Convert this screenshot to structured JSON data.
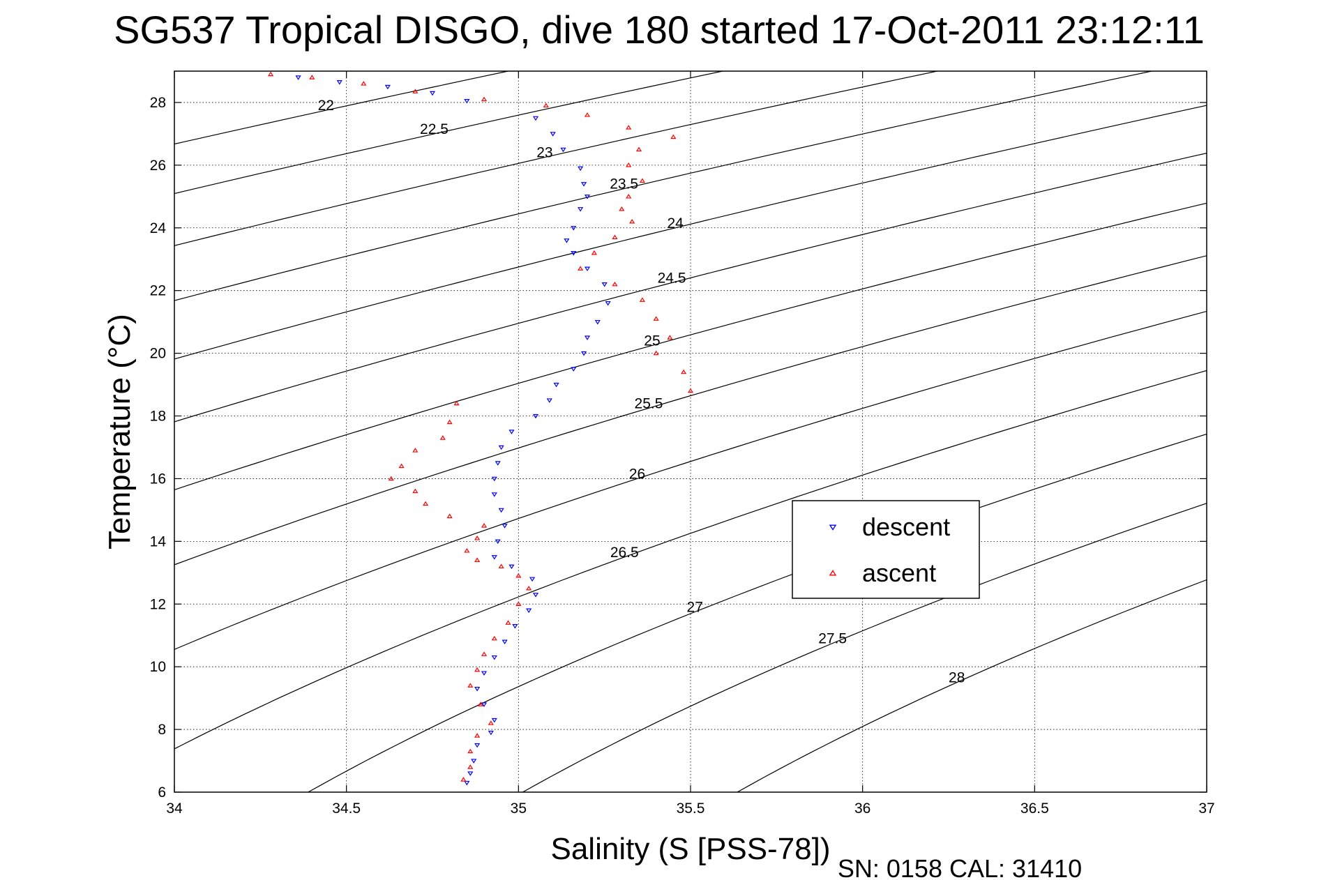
{
  "chart_data": {
    "type": "scatter",
    "title": "SG537 Tropical DISGO, dive 180 started 17-Oct-2011 23:12:11",
    "xlabel": "Salinity (S [PSS-78])",
    "ylabel": "Temperature (°C)",
    "xlim": [
      34,
      37
    ],
    "ylim": [
      6,
      29
    ],
    "x_ticks": [
      34,
      34.5,
      35,
      35.5,
      36,
      36.5,
      37
    ],
    "x_tick_labels": [
      "34",
      "34.5",
      "35",
      "35.5",
      "36",
      "36.5",
      "37"
    ],
    "y_ticks": [
      6,
      8,
      10,
      12,
      14,
      16,
      18,
      20,
      22,
      24,
      26,
      28
    ],
    "y_tick_labels": [
      "6",
      "8",
      "10",
      "12",
      "14",
      "16",
      "18",
      "20",
      "22",
      "24",
      "26",
      "28"
    ],
    "grid": true,
    "legend_position": "right-center",
    "density_contour_labels": [
      "22",
      "22.5",
      "23",
      "23.5",
      "24",
      "24.5",
      "25",
      "25.5",
      "26",
      "26.5",
      "27",
      "27.5",
      "28"
    ],
    "series": [
      {
        "name": "descent",
        "marker": "triangle-down",
        "color": "#0000ff",
        "points": [
          [
            34.36,
            28.8
          ],
          [
            34.48,
            28.65
          ],
          [
            34.62,
            28.5
          ],
          [
            34.75,
            28.3
          ],
          [
            34.85,
            28.05
          ],
          [
            35.05,
            27.5
          ],
          [
            35.1,
            27.0
          ],
          [
            35.13,
            26.5
          ],
          [
            35.18,
            25.9
          ],
          [
            35.19,
            25.4
          ],
          [
            35.2,
            25.0
          ],
          [
            35.18,
            24.6
          ],
          [
            35.16,
            24.0
          ],
          [
            35.14,
            23.6
          ],
          [
            35.16,
            23.2
          ],
          [
            35.2,
            22.7
          ],
          [
            35.25,
            22.2
          ],
          [
            35.26,
            21.6
          ],
          [
            35.23,
            21.0
          ],
          [
            35.2,
            20.5
          ],
          [
            35.19,
            20.0
          ],
          [
            35.16,
            19.5
          ],
          [
            35.11,
            19.0
          ],
          [
            35.09,
            18.5
          ],
          [
            35.05,
            18.0
          ],
          [
            34.98,
            17.5
          ],
          [
            34.95,
            17.0
          ],
          [
            34.94,
            16.5
          ],
          [
            34.93,
            16.0
          ],
          [
            34.93,
            15.5
          ],
          [
            34.95,
            15.0
          ],
          [
            34.96,
            14.5
          ],
          [
            34.94,
            14.0
          ],
          [
            34.93,
            13.5
          ],
          [
            34.98,
            13.2
          ],
          [
            35.04,
            12.8
          ],
          [
            35.05,
            12.3
          ],
          [
            35.03,
            11.8
          ],
          [
            34.99,
            11.3
          ],
          [
            34.96,
            10.8
          ],
          [
            34.93,
            10.3
          ],
          [
            34.9,
            9.8
          ],
          [
            34.88,
            9.3
          ],
          [
            34.9,
            8.8
          ],
          [
            34.93,
            8.3
          ],
          [
            34.92,
            7.9
          ],
          [
            34.88,
            7.5
          ],
          [
            34.87,
            7.0
          ],
          [
            34.86,
            6.6
          ],
          [
            34.85,
            6.3
          ]
        ]
      },
      {
        "name": "ascent",
        "marker": "triangle-up",
        "color": "#ff0000",
        "points": [
          [
            34.28,
            28.9
          ],
          [
            34.4,
            28.8
          ],
          [
            34.55,
            28.6
          ],
          [
            34.7,
            28.35
          ],
          [
            34.9,
            28.1
          ],
          [
            35.08,
            27.9
          ],
          [
            35.2,
            27.6
          ],
          [
            35.32,
            27.2
          ],
          [
            35.45,
            26.9
          ],
          [
            35.35,
            26.5
          ],
          [
            35.32,
            26.0
          ],
          [
            35.36,
            25.5
          ],
          [
            35.32,
            25.0
          ],
          [
            35.3,
            24.6
          ],
          [
            35.33,
            24.2
          ],
          [
            35.28,
            23.7
          ],
          [
            35.22,
            23.2
          ],
          [
            35.18,
            22.7
          ],
          [
            35.28,
            22.2
          ],
          [
            35.36,
            21.7
          ],
          [
            35.4,
            21.1
          ],
          [
            35.44,
            20.5
          ],
          [
            35.4,
            20.0
          ],
          [
            35.48,
            19.4
          ],
          [
            35.5,
            18.8
          ],
          [
            34.82,
            18.4
          ],
          [
            34.8,
            17.8
          ],
          [
            34.78,
            17.3
          ],
          [
            34.7,
            16.9
          ],
          [
            34.66,
            16.4
          ],
          [
            34.63,
            16.0
          ],
          [
            34.7,
            15.6
          ],
          [
            34.73,
            15.2
          ],
          [
            34.8,
            14.8
          ],
          [
            34.9,
            14.5
          ],
          [
            34.88,
            14.1
          ],
          [
            34.85,
            13.7
          ],
          [
            34.88,
            13.4
          ],
          [
            34.95,
            13.2
          ],
          [
            35.0,
            12.9
          ],
          [
            35.03,
            12.5
          ],
          [
            35.0,
            12.0
          ],
          [
            34.97,
            11.4
          ],
          [
            34.93,
            10.9
          ],
          [
            34.9,
            10.4
          ],
          [
            34.88,
            9.9
          ],
          [
            34.86,
            9.4
          ],
          [
            34.89,
            8.8
          ],
          [
            34.92,
            8.2
          ],
          [
            34.88,
            7.8
          ],
          [
            34.86,
            7.3
          ],
          [
            34.86,
            6.8
          ],
          [
            34.84,
            6.4
          ]
        ]
      }
    ]
  },
  "footer": "SN: 0158  CAL: 31410"
}
